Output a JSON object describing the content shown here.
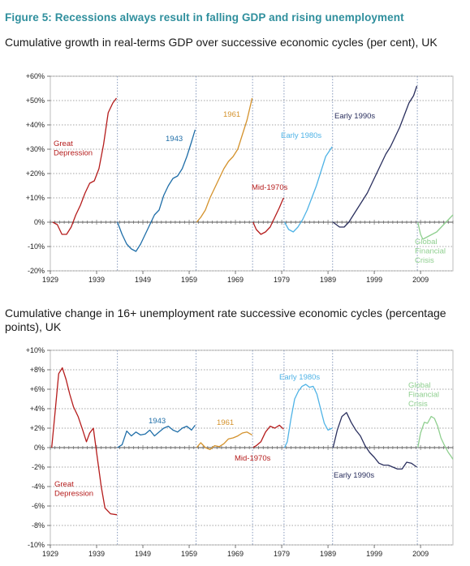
{
  "figure_title": "Figure 5: Recessions always result in falling GDP and rising unemployment",
  "colors": {
    "great_depression": "#b51c1c",
    "c1943": "#1f6ea8",
    "c1961": "#d4922c",
    "mid_1970s": "#b51c1c",
    "early_1980s": "#4fb3e6",
    "early_1990s": "#2a2f5e",
    "gfc": "#8fcf8f",
    "title_accent": "#2f8f9d",
    "grid": "#888888"
  },
  "chart_data": [
    {
      "type": "line",
      "title": "Cumulative growth in real-terms GDP over successive economic cycles (per cent), UK",
      "xlabel": "",
      "ylabel": "",
      "xlim": [
        1929,
        2016
      ],
      "ylim": [
        -20,
        60
      ],
      "x_ticks": [
        "1929",
        "1939",
        "1949",
        "1959",
        "1969",
        "1979",
        "1989",
        "1999",
        "2009"
      ],
      "y_ticks": [
        "+60%",
        "+50%",
        "+40%",
        "+30%",
        "+20%",
        "+10%",
        "0%",
        "-10%",
        "-20%"
      ],
      "cycle_boundaries": [
        1943.5,
        1960.5,
        1972.7,
        1979.5,
        1990.0,
        2008.3
      ],
      "grid": "horizontal dotted",
      "series": [
        {
          "name": "Great Depression",
          "label_lines": [
            "Great",
            "Depression"
          ],
          "color_key": "great_depression",
          "x": [
            1929.5,
            1930.5,
            1931.5,
            1932.5,
            1933.5,
            1934.5,
            1935.5,
            1936.5,
            1937.5,
            1938.5,
            1939.5,
            1940.5,
            1941.5,
            1942.5,
            1943.3
          ],
          "y": [
            0,
            -1,
            -5,
            -5,
            -2,
            3,
            7,
            12,
            16,
            17,
            22,
            32,
            45,
            49,
            51
          ]
        },
        {
          "name": "1943",
          "label_lines": [
            "1943"
          ],
          "color_key": "c1943",
          "x": [
            1943.5,
            1944.5,
            1945.5,
            1946.5,
            1947.5,
            1948.5,
            1949.5,
            1950.5,
            1951.5,
            1952.5,
            1953.5,
            1954.5,
            1955.5,
            1956.5,
            1957.5,
            1958.5,
            1959.5,
            1960.3
          ],
          "y": [
            0,
            -5,
            -9,
            -11,
            -12,
            -9,
            -5,
            -1,
            3,
            5,
            11,
            15,
            18,
            19,
            22,
            27,
            33,
            38
          ]
        },
        {
          "name": "1961",
          "label_lines": [
            "1961"
          ],
          "color_key": "c1961",
          "x": [
            1960.6,
            1961.5,
            1962.5,
            1963.5,
            1964.5,
            1965.5,
            1966.5,
            1967.5,
            1968.5,
            1969.5,
            1970.5,
            1971.5,
            1972.6
          ],
          "y": [
            0,
            2,
            5,
            10,
            14,
            18,
            22,
            25,
            27,
            30,
            36,
            42,
            51
          ]
        },
        {
          "name": "Mid-1970s",
          "label_lines": [
            "Mid-1970s"
          ],
          "color_key": "mid_1970s",
          "x": [
            1972.8,
            1973.5,
            1974.5,
            1975.5,
            1976.5,
            1977.5,
            1978.5,
            1979.4
          ],
          "y": [
            0,
            -3,
            -5,
            -4,
            -2,
            2,
            6,
            10
          ]
        },
        {
          "name": "Early 1980s",
          "label_lines": [
            "Early 1980s"
          ],
          "color_key": "early_1980s",
          "x": [
            1979.6,
            1980.5,
            1981.5,
            1982.5,
            1983.5,
            1984.5,
            1985.5,
            1986.5,
            1987.5,
            1988.5,
            1989.9
          ],
          "y": [
            0,
            -3,
            -4,
            -2,
            1,
            5,
            10,
            15,
            21,
            27,
            31
          ]
        },
        {
          "name": "Early 1990s",
          "label_lines": [
            "Early 1990s"
          ],
          "color_key": "early_1990s",
          "x": [
            1990.1,
            1991.5,
            1992.5,
            1993.5,
            1994.5,
            1995.5,
            1996.5,
            1997.5,
            1998.5,
            1999.5,
            2000.5,
            2001.5,
            2002.5,
            2003.5,
            2004.5,
            2005.5,
            2006.5,
            2007.5,
            2008.2
          ],
          "y": [
            0,
            -2,
            -2,
            0,
            3,
            6,
            9,
            12,
            16,
            20,
            24,
            28,
            31,
            35,
            39,
            44,
            49,
            52,
            56
          ]
        },
        {
          "name": "Global Financial Crisis",
          "label_lines": [
            "Global",
            "Financial",
            "Crisis"
          ],
          "color_key": "gfc",
          "x": [
            2008.4,
            2009.0,
            2009.5,
            2010.5,
            2011.5,
            2012.5,
            2013.5,
            2014.5,
            2015.5,
            2016.0
          ],
          "y": [
            0,
            -5,
            -7,
            -6,
            -5,
            -4,
            -2,
            0,
            2,
            3
          ]
        }
      ]
    },
    {
      "type": "line",
      "title": "Cumulative change in 16+ unemployment rate successive economic cycles (percentage points), UK",
      "xlabel": "",
      "ylabel": "",
      "xlim": [
        1929,
        2016
      ],
      "ylim": [
        -10,
        10
      ],
      "x_ticks": [
        "1929",
        "1939",
        "1949",
        "1959",
        "1969",
        "1979",
        "1989",
        "1999",
        "2009"
      ],
      "y_ticks": [
        "+10%",
        "+8%",
        "+6%",
        "+4%",
        "+2%",
        "0%",
        "-2%",
        "-4%",
        "-6%",
        "-8%",
        "-10%"
      ],
      "cycle_boundaries": [
        1943.5,
        1960.5,
        1972.7,
        1979.5,
        1990.0,
        2008.3
      ],
      "grid": "horizontal dotted",
      "series": [
        {
          "name": "Great Depression",
          "label_lines": [
            "Great",
            "Depression"
          ],
          "color_key": "great_depression",
          "x": [
            1929.3,
            1930.0,
            1930.8,
            1931.6,
            1932.4,
            1933.2,
            1934.0,
            1935.0,
            1936.0,
            1936.8,
            1937.5,
            1938.3,
            1939.0,
            1940.0,
            1940.8,
            1942.0,
            1943.4
          ],
          "y": [
            0,
            3.5,
            7.6,
            8.2,
            7.0,
            5.5,
            4.2,
            3.2,
            1.8,
            0.6,
            1.5,
            2.0,
            -0.5,
            -4.0,
            -6.2,
            -6.8,
            -6.9
          ]
        },
        {
          "name": "1943",
          "label_lines": [
            "1943"
          ],
          "color_key": "c1943",
          "x": [
            1943.5,
            1944.5,
            1945.5,
            1946.5,
            1947.5,
            1948.5,
            1949.5,
            1950.5,
            1951.5,
            1952.5,
            1953.5,
            1954.5,
            1955.5,
            1956.5,
            1957.5,
            1958.5,
            1959.5,
            1960.3
          ],
          "y": [
            0,
            0.3,
            1.7,
            1.2,
            1.6,
            1.3,
            1.4,
            1.8,
            1.2,
            1.6,
            2.0,
            2.2,
            1.8,
            1.6,
            2.0,
            2.2,
            1.8,
            2.3
          ]
        },
        {
          "name": "1961",
          "label_lines": [
            "1961"
          ],
          "color_key": "c1961",
          "x": [
            1960.6,
            1961.5,
            1962.5,
            1963.5,
            1964.5,
            1965.5,
            1966.5,
            1967.5,
            1968.5,
            1969.5,
            1970.5,
            1971.5,
            1972.6
          ],
          "y": [
            0,
            0.5,
            0.0,
            -0.2,
            0.2,
            0.1,
            0.4,
            0.9,
            1.0,
            1.2,
            1.5,
            1.6,
            1.3
          ]
        },
        {
          "name": "Mid-1970s",
          "label_lines": [
            "Mid-1970s"
          ],
          "color_key": "mid_1970s",
          "x": [
            1972.8,
            1973.5,
            1974.5,
            1975.5,
            1976.5,
            1977.5,
            1978.5,
            1979.4
          ],
          "y": [
            0,
            0.2,
            0.6,
            1.6,
            2.2,
            2.0,
            2.3,
            1.9
          ]
        },
        {
          "name": "Early 1980s",
          "label_lines": [
            "Early 1980s"
          ],
          "color_key": "early_1980s",
          "x": [
            1979.6,
            1980.2,
            1981.0,
            1981.8,
            1982.6,
            1983.4,
            1984.2,
            1985.0,
            1985.8,
            1986.6,
            1987.4,
            1988.2,
            1989.0,
            1989.9
          ],
          "y": [
            0,
            0.6,
            3.0,
            5.0,
            5.8,
            6.3,
            6.5,
            6.2,
            6.3,
            5.5,
            4.0,
            2.5,
            1.8,
            2.0
          ]
        },
        {
          "name": "Early 1990s",
          "label_lines": [
            "Early 1990s"
          ],
          "color_key": "early_1990s",
          "x": [
            1990.1,
            1991.0,
            1992.0,
            1993.0,
            1994.0,
            1995.0,
            1996.0,
            1997.0,
            1998.0,
            1999.0,
            2000.0,
            2001.0,
            2002.0,
            2003.0,
            2004.0,
            2005.0,
            2006.0,
            2007.0,
            2008.2
          ],
          "y": [
            0,
            1.8,
            3.2,
            3.6,
            2.6,
            1.8,
            1.2,
            0.2,
            -0.5,
            -1.0,
            -1.6,
            -1.8,
            -1.8,
            -2.0,
            -2.2,
            -2.2,
            -1.5,
            -1.6,
            -2.0
          ]
        },
        {
          "name": "Global Financial Crisis",
          "label_lines": [
            "Global",
            "Financial",
            "Crisis"
          ],
          "color_key": "gfc",
          "x": [
            2008.4,
            2009.0,
            2009.8,
            2010.5,
            2011.3,
            2012.0,
            2012.7,
            2013.4,
            2014.2,
            2015.0,
            2015.6,
            2016.0
          ],
          "y": [
            0,
            1.5,
            2.6,
            2.5,
            3.2,
            3.0,
            2.2,
            1.0,
            0.2,
            -0.5,
            -0.9,
            -1.2
          ]
        }
      ]
    }
  ]
}
